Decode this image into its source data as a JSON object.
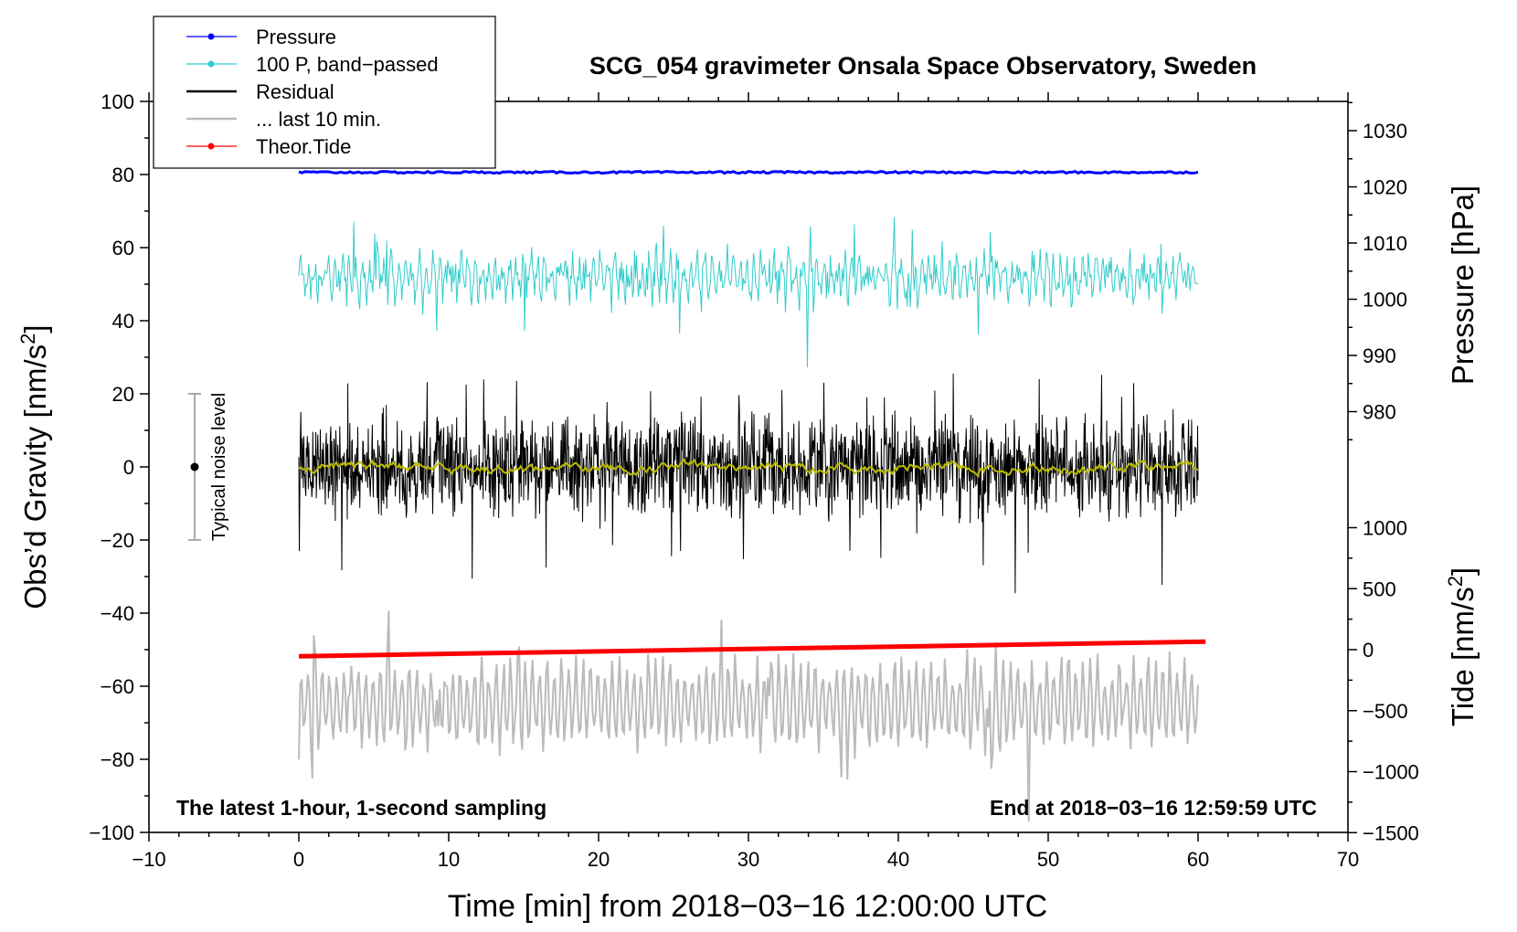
{
  "chart_data": {
    "type": "line",
    "title": "SCG_054 gravimeter Onsala Space Observatory, Sweden",
    "xlabel": "Time [min] from 2018−03−16 12:00:00 UTC",
    "ylabel_left": "Obs’d Gravity [nm/s",
    "ylabel_left_sup": "2",
    "ylabel_left_end": "]",
    "ylabel_right_pressure": "Pressure [hPa]",
    "ylabel_right_tide": "Tide [nm/s",
    "ylabel_right_tide_sup": "2",
    "ylabel_right_tide_end": "]",
    "xlim": [
      -10,
      70
    ],
    "ylim": [
      -100,
      100
    ],
    "x_ticks": [
      "−10",
      "0",
      "10",
      "20",
      "30",
      "40",
      "50",
      "60",
      "70"
    ],
    "y_ticks": [
      "−100",
      "−80",
      "−60",
      "−40",
      "−20",
      "0",
      "20",
      "40",
      "60",
      "80",
      "100"
    ],
    "pressure_ticks": [
      "980",
      "990",
      "1000",
      "1010",
      "1020",
      "1030"
    ],
    "tide_ticks": [
      "−1500",
      "−1000",
      "−500",
      "0",
      "500",
      "1000"
    ],
    "annotation_left": "The latest 1-hour, 1-second sampling",
    "annotation_right": "End at 2018−03−16 12:59:59 UTC",
    "noise_label": "Typical noise level",
    "noise_bar": {
      "x": -7,
      "low": -20,
      "high": 20,
      "center": 0
    },
    "legend": [
      {
        "label": "Pressure",
        "color": "#0000ff",
        "marker": true
      },
      {
        "label": "100 P, band−passed",
        "color": "#33cccc",
        "marker": true
      },
      {
        "label": "Residual",
        "color": "#000000",
        "marker": false
      },
      {
        "label": "... last 10 min.",
        "color": "#bbbbbb",
        "marker": false
      },
      {
        "label": "Theor.Tide",
        "color": "#ff0000",
        "marker": true
      }
    ],
    "series": [
      {
        "name": "Pressure",
        "color": "#0000ff",
        "approx_level": 80.6,
        "x_range": [
          0,
          60
        ]
      },
      {
        "name": "100 P, band−passed",
        "color": "#33cccc",
        "approx_center": 52,
        "approx_amplitude": 7,
        "x_range": [
          0,
          60
        ]
      },
      {
        "name": "Residual",
        "color": "#000000",
        "approx_center": 0,
        "approx_amplitude": 10,
        "x_range": [
          0,
          60
        ]
      },
      {
        "name": "Residual smoothed",
        "color": "#bbbb00",
        "approx_center": 0,
        "x_range": [
          0,
          60
        ]
      },
      {
        "name": "... last 10 min.",
        "color": "#bbbbbb",
        "approx_center": -65,
        "approx_amplitude": 10,
        "x_range": [
          0,
          60
        ]
      },
      {
        "name": "Theor.Tide",
        "color": "#ff0000",
        "x": [
          0,
          60.5
        ],
        "y": [
          -51.8,
          -47.8
        ]
      }
    ]
  }
}
